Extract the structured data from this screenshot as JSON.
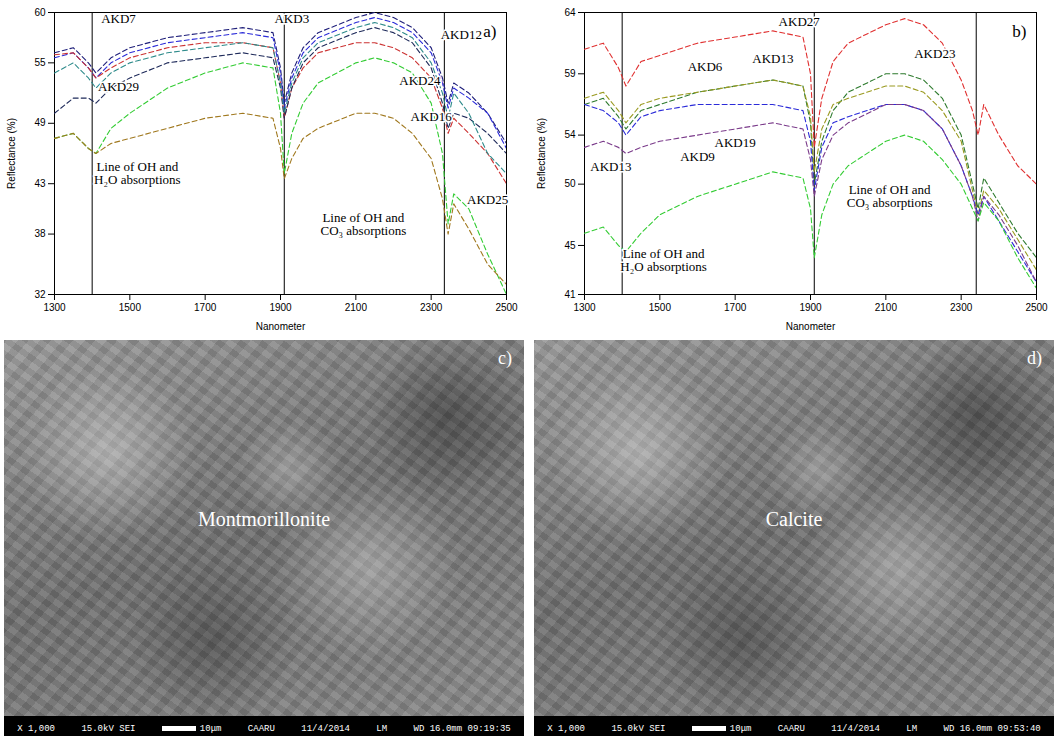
{
  "chart_data": [
    {
      "type": "line",
      "panel": "a)",
      "x_label": "Nanometer",
      "y_label": "Reflectance (%)",
      "xlim": [
        1300,
        2500
      ],
      "xticks": [
        1300,
        1500,
        1700,
        1900,
        2100,
        2300,
        2500
      ],
      "ylim": [
        32,
        60
      ],
      "yticks": [
        32,
        38,
        43,
        49,
        55,
        60
      ],
      "grid": false,
      "line_style": "dashed",
      "x": [
        1300,
        1350,
        1390,
        1410,
        1450,
        1500,
        1600,
        1700,
        1800,
        1880,
        1900,
        1910,
        1930,
        1960,
        2000,
        2100,
        2150,
        2200,
        2250,
        2300,
        2330,
        2345,
        2360,
        2400,
        2450,
        2500
      ],
      "series": [
        {
          "name": "AKD3",
          "color": "#1f1f7a",
          "values": [
            56,
            56.5,
            55,
            54,
            55.5,
            56.5,
            57.5,
            58,
            58.5,
            58,
            54.5,
            51,
            54,
            56.5,
            58,
            59.5,
            60,
            59.5,
            58.5,
            56.5,
            53.5,
            51,
            53,
            52,
            50,
            47
          ]
        },
        {
          "name": "AKD7",
          "color": "#2b2bd9",
          "values": [
            55.5,
            56,
            54.5,
            53.5,
            55,
            56,
            57,
            57.5,
            58,
            57.5,
            54,
            50.5,
            53.5,
            56,
            57.5,
            59,
            59.5,
            59,
            58,
            56,
            53,
            50.5,
            52.5,
            51.5,
            50,
            46.5
          ]
        },
        {
          "name": "AKD12",
          "color": "#cc3333",
          "values": [
            55.8,
            56,
            54.5,
            53.5,
            54.5,
            55.5,
            56.5,
            57,
            57,
            56.5,
            53,
            49.5,
            52.5,
            54.5,
            56,
            57,
            57,
            56.5,
            55.5,
            53.5,
            50.5,
            48,
            49.5,
            48,
            46,
            43
          ]
        },
        {
          "name": "AKD29",
          "color": "#1e2a5a",
          "values": [
            50,
            51.5,
            51.5,
            51,
            52.5,
            53.5,
            55,
            55.5,
            56,
            55.5,
            52.5,
            49.5,
            52.5,
            55,
            56.5,
            58,
            58.5,
            58,
            57,
            54.5,
            51,
            48.5,
            50,
            49.5,
            48,
            46
          ]
        },
        {
          "name": "AKD25",
          "color": "#2e8b8b",
          "values": [
            54,
            55,
            53.5,
            52.5,
            54,
            55,
            56,
            56.5,
            57,
            56.5,
            53,
            50,
            53,
            55.5,
            57,
            58.5,
            59,
            58.5,
            57.5,
            55,
            52,
            49.5,
            52,
            50,
            46,
            44
          ]
        },
        {
          "name": "AKD24",
          "color": "#33cc33",
          "values": [
            47.5,
            48,
            46.5,
            46,
            48.5,
            50,
            52.5,
            54,
            55,
            54.5,
            50,
            44,
            48,
            51,
            53,
            55,
            55.5,
            55,
            54,
            51,
            46,
            39,
            42,
            40.5,
            36,
            32
          ]
        },
        {
          "name": "AKD16",
          "color": "#a0781e",
          "values": [
            47.5,
            48,
            46.5,
            46,
            47,
            47.5,
            48.5,
            49.5,
            50,
            49.5,
            46.5,
            43.5,
            45.5,
            47.5,
            48.5,
            50,
            50,
            49.5,
            48,
            45.5,
            41.5,
            38,
            41,
            38.5,
            35,
            33
          ]
        }
      ],
      "vlines": [
        1400,
        1910,
        2335
      ],
      "annotations": [
        {
          "text": "AKD7",
          "x": 1470,
          "y": 59.4
        },
        {
          "text": "AKD3",
          "x": 1930,
          "y": 59.4
        },
        {
          "text": "AKD29",
          "x": 1470,
          "y": 52.6
        },
        {
          "text": "AKD12",
          "x": 2380,
          "y": 57.8
        },
        {
          "text": "AKD24",
          "x": 2270,
          "y": 53.2
        },
        {
          "text": "AKD16",
          "x": 2300,
          "y": 49.6
        },
        {
          "text": "AKD25",
          "x": 2450,
          "y": 41.4
        },
        {
          "text": "Line of OH and\nH₂O absorptions",
          "x": 1520,
          "y": 44
        },
        {
          "text": "Line of OH and\nCO₃ absorptions",
          "x": 2120,
          "y": 39
        }
      ]
    },
    {
      "type": "line",
      "panel": "b)",
      "x_label": "Nanometer",
      "y_label": "Reflectance (%)",
      "xlim": [
        1300,
        2500
      ],
      "xticks": [
        1300,
        1500,
        1700,
        1900,
        2100,
        2300,
        2500
      ],
      "ylim": [
        41,
        64
      ],
      "yticks": [
        41,
        45,
        50,
        54,
        59,
        64
      ],
      "grid": false,
      "line_style": "dashed",
      "x": [
        1300,
        1350,
        1390,
        1410,
        1450,
        1500,
        1600,
        1700,
        1800,
        1880,
        1900,
        1910,
        1930,
        1960,
        2000,
        2100,
        2150,
        2200,
        2250,
        2300,
        2330,
        2345,
        2360,
        2400,
        2450,
        2500
      ],
      "series": [
        {
          "name": "AKD27",
          "color": "#e03030",
          "values": [
            61,
            61.5,
            59.5,
            58,
            60,
            60.5,
            61.5,
            62,
            62.5,
            62,
            59,
            53,
            57,
            60,
            61.5,
            63,
            63.5,
            63,
            61.5,
            58.5,
            56,
            54,
            56.5,
            54,
            51.5,
            50
          ]
        },
        {
          "name": "AKD23",
          "color": "#2d7a2d",
          "values": [
            56.5,
            57,
            55.5,
            54.5,
            56,
            56.5,
            57.5,
            58,
            58.5,
            58,
            55,
            50,
            53.5,
            56,
            57.5,
            59,
            59,
            58.5,
            57,
            54,
            50,
            48,
            50.5,
            48.5,
            46,
            44
          ]
        },
        {
          "name": "AKD6",
          "color": "#9a9a20",
          "values": [
            57,
            57.5,
            56,
            55,
            56.5,
            57,
            57.5,
            58,
            58.5,
            58,
            55.5,
            51,
            54.5,
            56.5,
            57,
            58,
            58,
            57.5,
            56,
            53.5,
            49.5,
            47.5,
            49.5,
            48,
            45.5,
            43
          ]
        },
        {
          "name": "AKD13",
          "color": "#2b2bd9",
          "values": [
            56.5,
            56,
            55,
            54,
            55.5,
            56,
            56.5,
            56.5,
            56.5,
            56,
            53.5,
            49.5,
            53,
            55,
            55.5,
            56.5,
            56.5,
            56,
            54.5,
            51.5,
            49,
            47.5,
            49,
            47,
            44.5,
            42
          ]
        },
        {
          "name": "AKD19",
          "color": "#7a3a8a",
          "values": [
            53,
            53.5,
            53,
            52.5,
            53,
            53.5,
            54,
            54.5,
            55,
            54.5,
            52,
            49,
            52,
            54,
            55,
            56.5,
            56.5,
            56,
            54.5,
            51.5,
            49,
            47,
            49,
            47.5,
            45,
            42
          ]
        },
        {
          "name": "AKD9",
          "color": "#33cc33",
          "values": [
            46,
            46.5,
            45,
            44.5,
            46,
            47.5,
            49,
            50,
            51,
            50.5,
            48,
            44,
            47.5,
            50,
            51.5,
            53.5,
            54,
            53.5,
            52,
            50,
            48,
            47,
            48.5,
            47,
            44,
            41.5
          ]
        }
      ],
      "vlines": [
        1400,
        1910,
        2340
      ],
      "annotations": [
        {
          "text": "AKD27",
          "x": 1870,
          "y": 63.2
        },
        {
          "text": "AKD13",
          "x": 1800,
          "y": 60.2
        },
        {
          "text": "AKD6",
          "x": 1620,
          "y": 59.6
        },
        {
          "text": "AKD23",
          "x": 2230,
          "y": 60.6
        },
        {
          "text": "AKD19",
          "x": 1700,
          "y": 53.4
        },
        {
          "text": "AKD9",
          "x": 1600,
          "y": 52.2
        },
        {
          "text": "AKD13",
          "x": 1370,
          "y": 51.4
        },
        {
          "text": "Line of OH and\nH₂O absorptions",
          "x": 1510,
          "y": 43.8
        },
        {
          "text": "Line of OH and\nCO₃ absorptions",
          "x": 2110,
          "y": 49
        }
      ]
    }
  ],
  "images": [
    {
      "panel": "c)",
      "label": "Montmorillonite",
      "footer": [
        "X 1,000",
        "15.0kV SEI",
        "10μm",
        "CAARU",
        "11/4/2014",
        "LM",
        "WD 16.0mm 09:19:35"
      ]
    },
    {
      "panel": "d)",
      "label": "Calcite",
      "footer": [
        "X 1,000",
        "15.0kV SEI",
        "10μm",
        "CAARU",
        "11/4/2014",
        "LM",
        "WD 16.0mm 09:53:40"
      ]
    }
  ]
}
